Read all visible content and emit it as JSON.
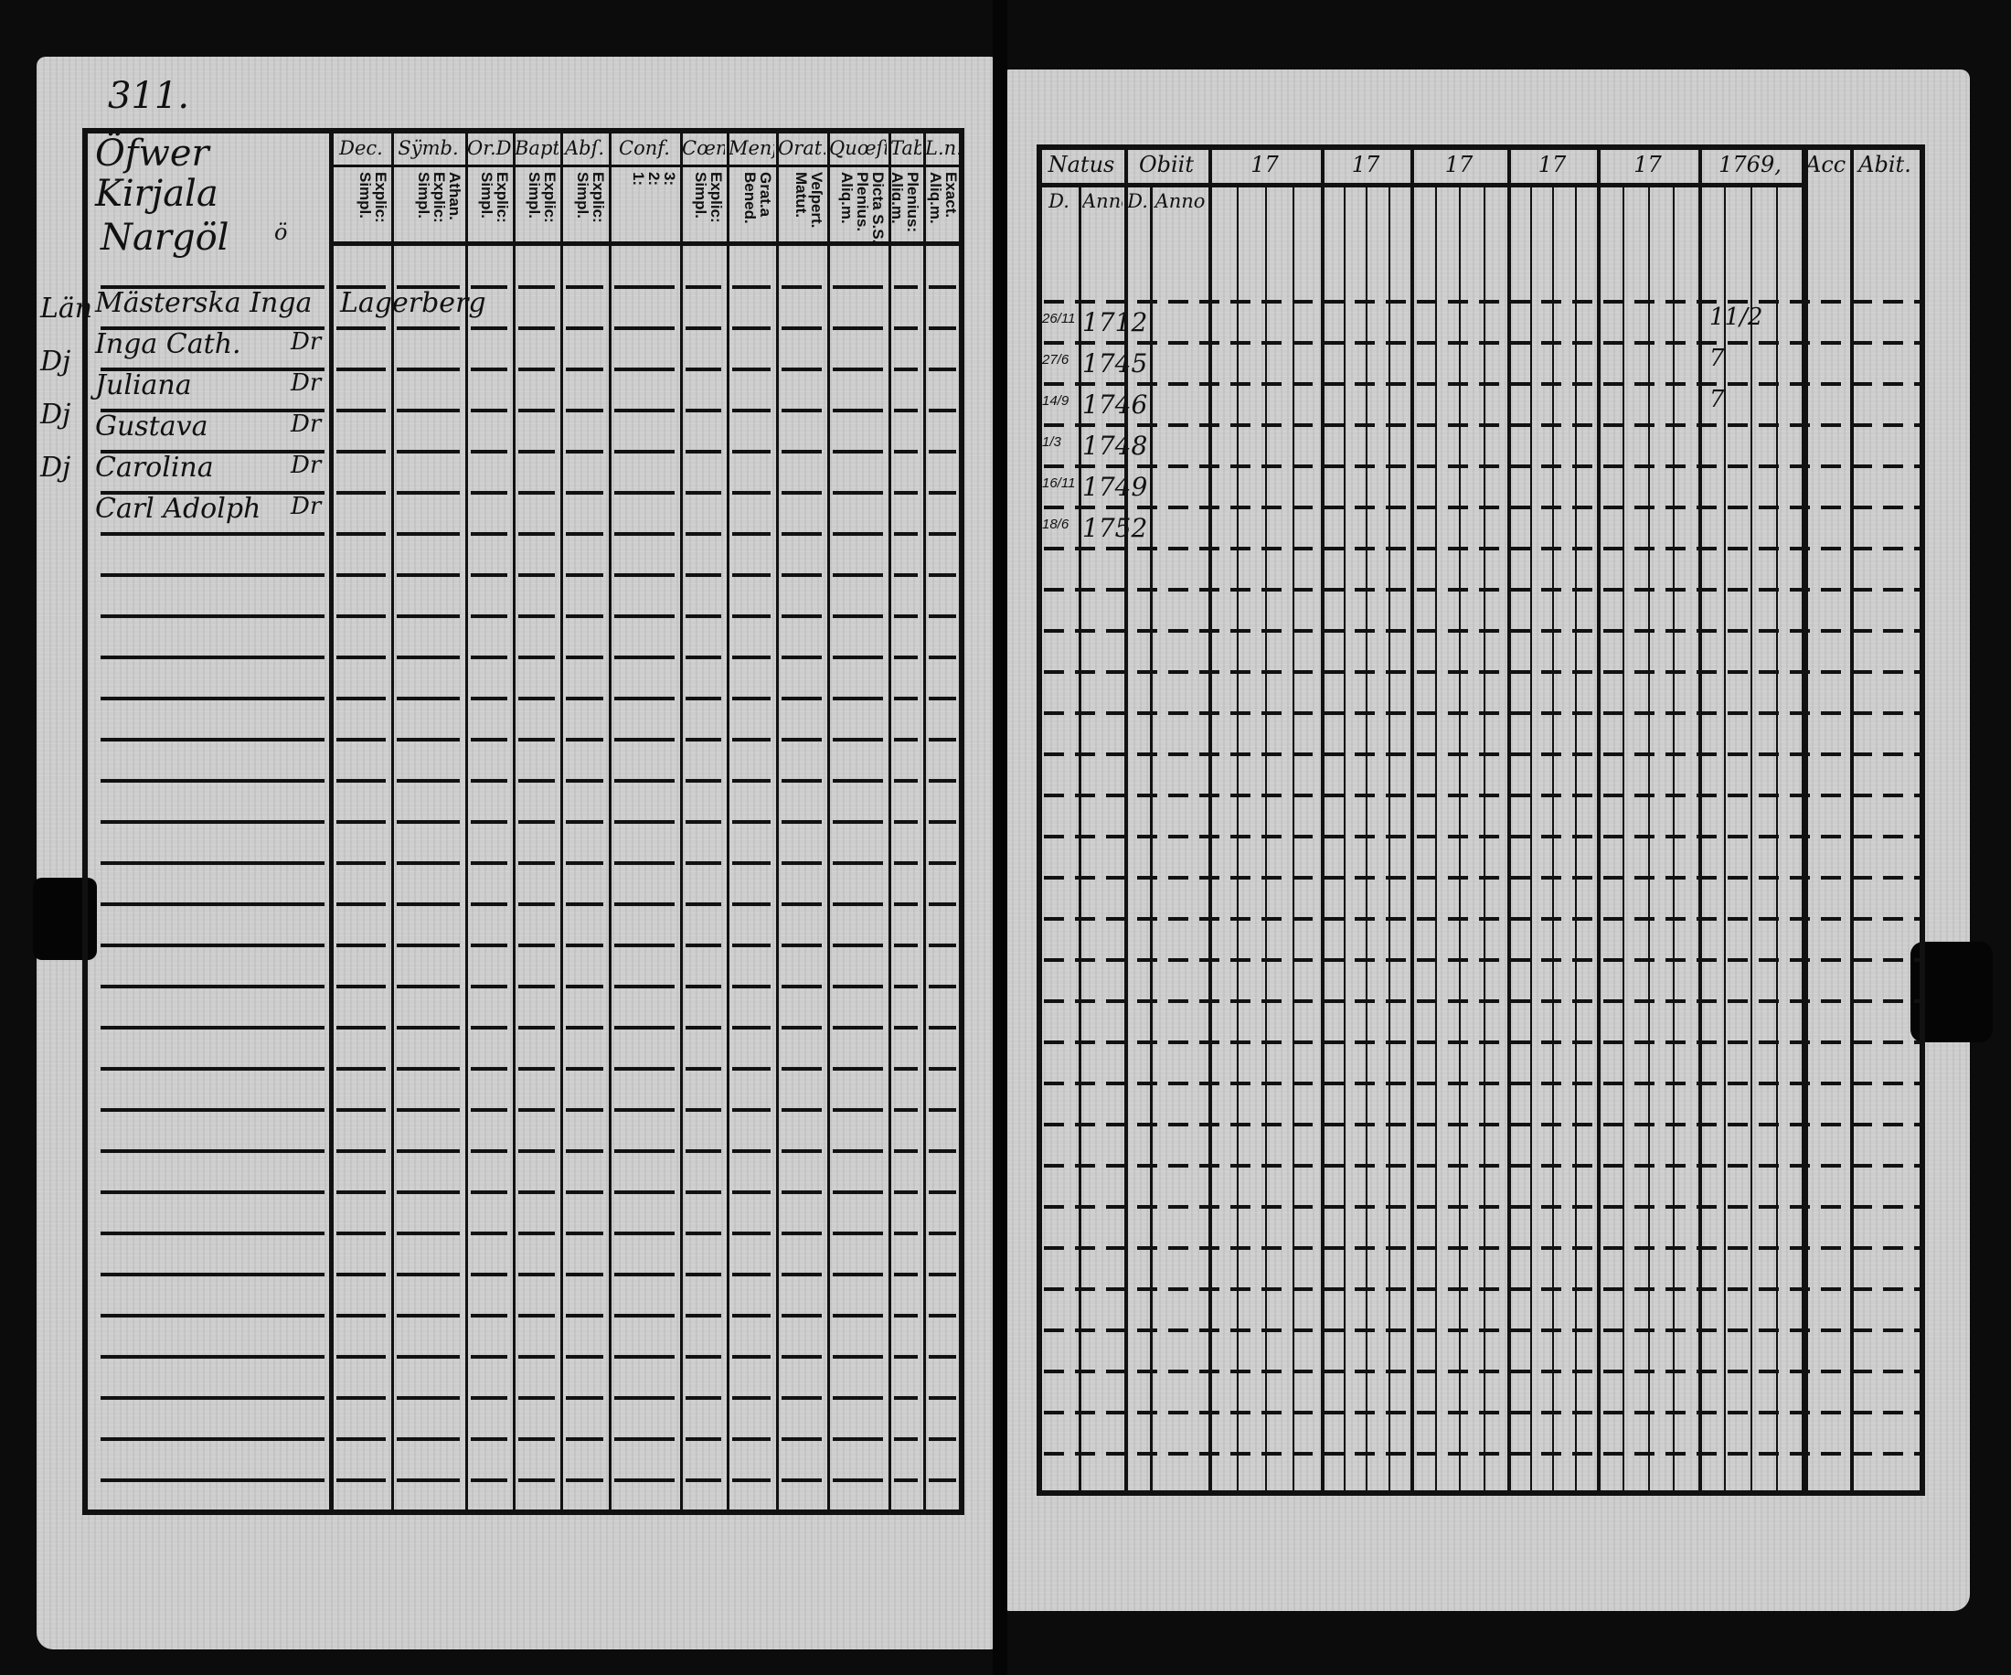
{
  "left_page": {
    "page_number": "311.",
    "village": {
      "line1": "Öfwer Kirjala",
      "line2": "ö",
      "line3": "Nargöl"
    },
    "columns": [
      {
        "label": "Dec.",
        "sub": "Explic:\nSimpl."
      },
      {
        "label": "Sÿmb.",
        "sub": "Athan.\nExplic:\nSimpl."
      },
      {
        "label": "Or.D",
        "sub": "Explic:\nSimpl."
      },
      {
        "label": "Bapt.",
        "sub": "Explic:\nSimpl."
      },
      {
        "label": "Abſ.",
        "sub": "Explic:\nSimpl."
      },
      {
        "label": "Conf.",
        "sub": "3:\n2:\n1:"
      },
      {
        "label": "Cœn.D",
        "sub": "Explic:\nSimpl."
      },
      {
        "label": "Menſ.",
        "sub": "Grat.a\nBened."
      },
      {
        "label": "Orat.",
        "sub": "Veſpert.\nMatut."
      },
      {
        "label": "Quœſt.",
        "sub": "Dicta S.S.\nPlenius.\nAliq.m."
      },
      {
        "label": "Tabu",
        "sub": "Plenius:\nAliq.m."
      },
      {
        "label": "L.n.",
        "sub": "Exact.\nAliq.m."
      }
    ],
    "margin_notes": [
      "Län",
      "Dj",
      "Dj",
      "Dj"
    ],
    "entries": [
      {
        "name": "Mästerska Inga",
        "extra": "Lagerberg"
      },
      {
        "name": "Inga Cath.",
        "ditto": "Dr"
      },
      {
        "name": "Juliana",
        "ditto": "Dr"
      },
      {
        "name": "Gustava",
        "ditto": "Dr"
      },
      {
        "name": "Carolina",
        "ditto": "Dr"
      },
      {
        "name": "Carl Adolph",
        "ditto": "Dr"
      }
    ]
  },
  "right_page": {
    "columns": [
      {
        "label": "Natus",
        "subs": [
          "D.",
          "Anno"
        ]
      },
      {
        "label": "Obiit",
        "subs": [
          "D.",
          "Anno"
        ]
      },
      {
        "label": "17"
      },
      {
        "label": "17"
      },
      {
        "label": "17"
      },
      {
        "label": "17"
      },
      {
        "label": "17"
      },
      {
        "label": "1769,"
      },
      {
        "label": "Acceſ."
      },
      {
        "label": "Abit."
      }
    ],
    "births": [
      {
        "day": "26/11",
        "year": "1712",
        "mark": "11/2"
      },
      {
        "day": "27/6",
        "year": "1745",
        "mark": "7"
      },
      {
        "day": "14/9",
        "year": "1746",
        "mark": "7"
      },
      {
        "day": "1/3",
        "year": "1748"
      },
      {
        "day": "16/11",
        "year": "1749"
      },
      {
        "day": "18/6",
        "year": "1752"
      }
    ]
  }
}
